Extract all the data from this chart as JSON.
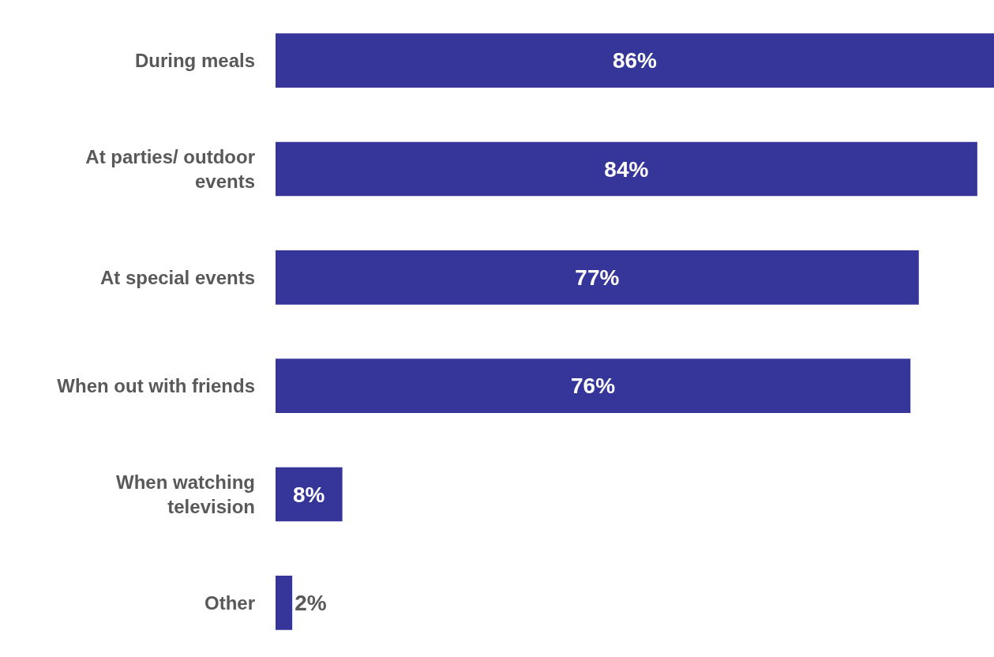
{
  "chart_data": {
    "type": "bar",
    "orientation": "horizontal",
    "categories": [
      "During meals",
      "At parties/ outdoor events",
      "At special events",
      "When out with friends",
      "When watching television",
      "Other"
    ],
    "values": [
      86,
      84,
      77,
      76,
      8,
      2
    ],
    "value_labels": [
      "86%",
      "84%",
      "77%",
      "76%",
      "8%",
      "2%"
    ],
    "color": "#35359a",
    "xlim": [
      0,
      86
    ]
  }
}
